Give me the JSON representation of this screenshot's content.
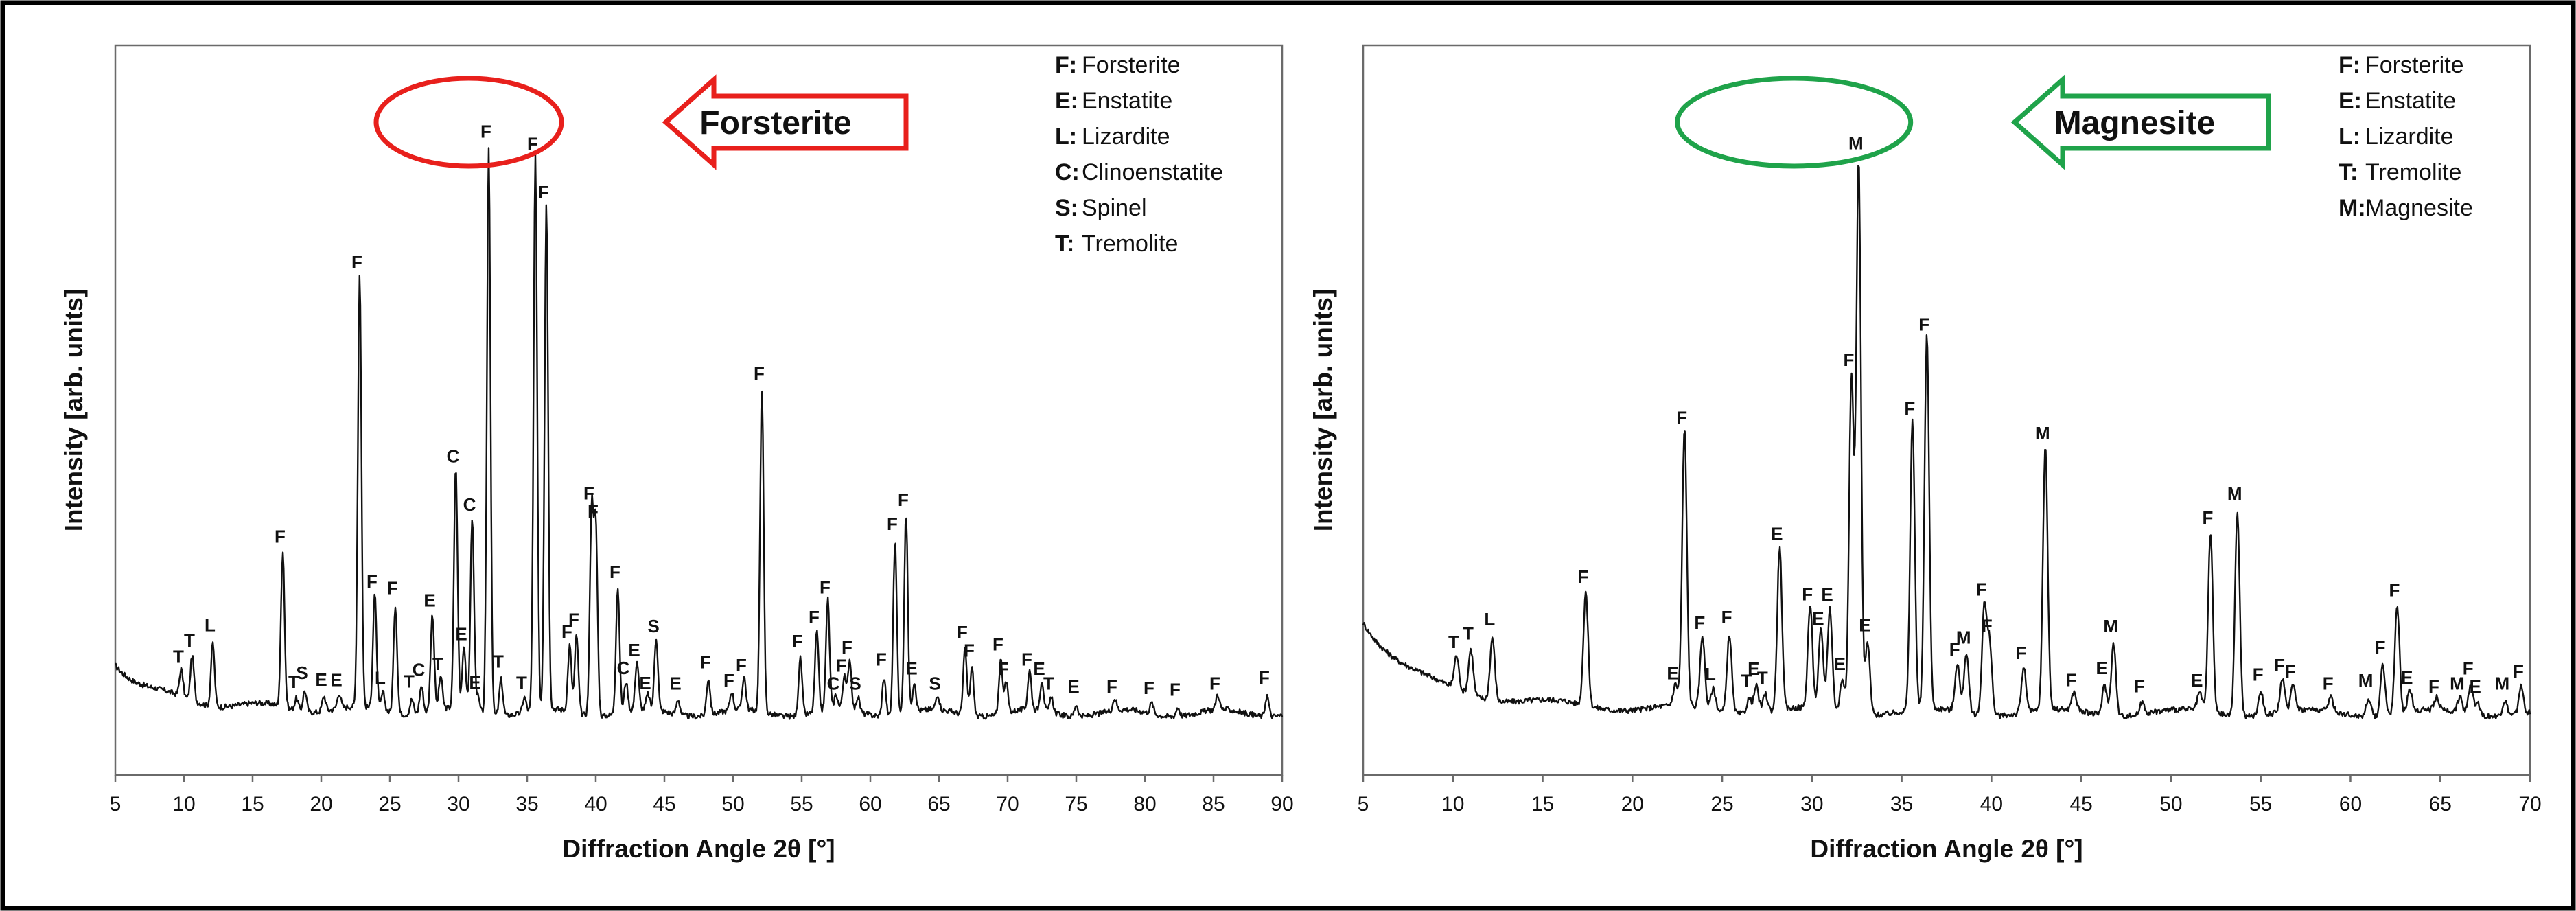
{
  "chart_data": [
    {
      "type": "line",
      "ylabel": "Intensity [arb. units]",
      "xlabel": "Diffraction Angle 2θ [°]",
      "xlim": [
        5,
        90
      ],
      "x_ticks": [
        5,
        10,
        15,
        20,
        25,
        30,
        35,
        40,
        45,
        50,
        55,
        60,
        65,
        70,
        75,
        80,
        85,
        90
      ],
      "ylim": [
        0,
        100
      ],
      "background": {
        "start": 11,
        "decay": 2.2,
        "base": 3.0
      },
      "peaks": [
        {
          "x": 9.8,
          "y": 4.5,
          "label": "T",
          "wide": false
        },
        {
          "x": 10.6,
          "y": 7.5,
          "label": "T",
          "wide": false
        },
        {
          "x": 12.1,
          "y": 10.5,
          "label": "L",
          "wide": false
        },
        {
          "x": 17.2,
          "y": 26,
          "label": "F",
          "wide": false
        },
        {
          "x": 18.2,
          "y": 2,
          "label": "T",
          "wide": false
        },
        {
          "x": 18.8,
          "y": 3.5,
          "label": "S",
          "wide": false
        },
        {
          "x": 20.2,
          "y": 2.5,
          "label": "E",
          "wide": false
        },
        {
          "x": 21.3,
          "y": 2.5,
          "label": "E",
          "wide": false
        },
        {
          "x": 22.8,
          "y": 72,
          "label": "F",
          "wide": false
        },
        {
          "x": 23.9,
          "y": 19,
          "label": "F",
          "wide": false
        },
        {
          "x": 24.5,
          "y": 3,
          "label": "L",
          "wide": false
        },
        {
          "x": 25.4,
          "y": 18,
          "label": "F",
          "wide": false
        },
        {
          "x": 26.6,
          "y": 2.5,
          "label": "T",
          "wide": false
        },
        {
          "x": 27.3,
          "y": 4.5,
          "label": "C",
          "wide": false
        },
        {
          "x": 28.1,
          "y": 16,
          "label": "E",
          "wide": false
        },
        {
          "x": 28.7,
          "y": 5.5,
          "label": "T",
          "wide": false
        },
        {
          "x": 29.8,
          "y": 40,
          "label": "C",
          "wide": false
        },
        {
          "x": 30.4,
          "y": 10.5,
          "label": "E",
          "wide": false
        },
        {
          "x": 31.0,
          "y": 32,
          "label": "C",
          "wide": false
        },
        {
          "x": 31.4,
          "y": 2.5,
          "label": "E",
          "wide": false
        },
        {
          "x": 32.2,
          "y": 94,
          "label": "F",
          "wide": false
        },
        {
          "x": 33.1,
          "y": 6,
          "label": "T",
          "wide": false
        },
        {
          "x": 34.8,
          "y": 2.5,
          "label": "T",
          "wide": false
        },
        {
          "x": 35.6,
          "y": 92,
          "label": "F",
          "wide": false
        },
        {
          "x": 36.4,
          "y": 84,
          "label": "F",
          "wide": false
        },
        {
          "x": 38.1,
          "y": 11,
          "label": "F",
          "wide": false
        },
        {
          "x": 38.6,
          "y": 13,
          "label": "F",
          "wide": false
        },
        {
          "x": 39.7,
          "y": 34,
          "label": "F",
          "wide": false
        },
        {
          "x": 40.0,
          "y": 31,
          "label": "F",
          "wide": false
        },
        {
          "x": 41.6,
          "y": 21,
          "label": "F",
          "wide": false
        },
        {
          "x": 42.2,
          "y": 5,
          "label": "C",
          "wide": false
        },
        {
          "x": 43.0,
          "y": 8,
          "label": "E",
          "wide": false
        },
        {
          "x": 43.8,
          "y": 2.5,
          "label": "E",
          "wide": false
        },
        {
          "x": 44.4,
          "y": 12,
          "label": "S",
          "wide": false
        },
        {
          "x": 46.0,
          "y": 2.5,
          "label": "E",
          "wide": false
        },
        {
          "x": 48.2,
          "y": 6,
          "label": "F",
          "wide": false
        },
        {
          "x": 49.9,
          "y": 3,
          "label": "F",
          "wide": false
        },
        {
          "x": 50.8,
          "y": 5.5,
          "label": "F",
          "wide": false
        },
        {
          "x": 52.1,
          "y": 54,
          "label": "F",
          "wide": false
        },
        {
          "x": 54.9,
          "y": 9.5,
          "label": "F",
          "wide": false
        },
        {
          "x": 56.1,
          "y": 13.5,
          "label": "F",
          "wide": false
        },
        {
          "x": 56.9,
          "y": 18.5,
          "label": "F",
          "wide": false
        },
        {
          "x": 57.5,
          "y": 2.5,
          "label": "C",
          "wide": false
        },
        {
          "x": 58.1,
          "y": 5.5,
          "label": "F",
          "wide": false
        },
        {
          "x": 58.5,
          "y": 8.5,
          "label": "F",
          "wide": false
        },
        {
          "x": 59.1,
          "y": 2.5,
          "label": "S",
          "wide": false
        },
        {
          "x": 61.0,
          "y": 6.5,
          "label": "F",
          "wide": false
        },
        {
          "x": 61.8,
          "y": 29,
          "label": "F",
          "wide": false
        },
        {
          "x": 62.6,
          "y": 33,
          "label": "F",
          "wide": false
        },
        {
          "x": 63.2,
          "y": 5,
          "label": "E",
          "wide": false
        },
        {
          "x": 64.9,
          "y": 2.5,
          "label": "S",
          "wide": false
        },
        {
          "x": 66.9,
          "y": 11,
          "label": "F",
          "wide": false
        },
        {
          "x": 67.4,
          "y": 8,
          "label": "F",
          "wide": false
        },
        {
          "x": 69.5,
          "y": 9,
          "label": "F",
          "wide": false
        },
        {
          "x": 69.9,
          "y": 5,
          "label": "F",
          "wide": false
        },
        {
          "x": 71.6,
          "y": 6.5,
          "label": "F",
          "wide": false
        },
        {
          "x": 72.5,
          "y": 5,
          "label": "E",
          "wide": false
        },
        {
          "x": 73.2,
          "y": 2.5,
          "label": "T",
          "wide": false
        },
        {
          "x": 75.0,
          "y": 2,
          "label": "E",
          "wide": false
        },
        {
          "x": 77.8,
          "y": 2,
          "label": "F",
          "wide": false
        },
        {
          "x": 80.5,
          "y": 1.8,
          "label": "F",
          "wide": false
        },
        {
          "x": 82.4,
          "y": 1.5,
          "label": "F",
          "wide": false
        },
        {
          "x": 85.3,
          "y": 2.5,
          "label": "F",
          "wide": false
        },
        {
          "x": 88.9,
          "y": 3.5,
          "label": "F",
          "wide": false
        }
      ],
      "legend": [
        {
          "key": "F",
          "name": "Forsterite"
        },
        {
          "key": "E",
          "name": "Enstatite"
        },
        {
          "key": "L",
          "name": "Lizardite"
        },
        {
          "key": "C",
          "name": "Clinoenstatite"
        },
        {
          "key": "S",
          "name": "Spinel"
        },
        {
          "key": "T",
          "name": "Tremolite"
        }
      ],
      "callout": {
        "text": "Forsterite",
        "color": "#e8201c",
        "ellipse_x": [
          24,
          37.5
        ],
        "ellipse_y": [
          84,
          100
        ]
      }
    },
    {
      "type": "line",
      "ylabel": "Intensity [arb. units]",
      "xlabel": "Diffraction Angle 2θ [°]",
      "xlim": [
        5,
        70
      ],
      "x_ticks": [
        5,
        10,
        15,
        20,
        25,
        30,
        35,
        40,
        45,
        50,
        55,
        60,
        65,
        70
      ],
      "ylim": [
        0,
        100
      ],
      "background": {
        "start": 23,
        "decay": 2.6,
        "base": 4.0
      },
      "peaks": [
        {
          "x": 10.2,
          "y": 5.5,
          "label": "T",
          "wide": false
        },
        {
          "x": 11.0,
          "y": 7.5,
          "label": "T",
          "wide": false
        },
        {
          "x": 12.2,
          "y": 10.5,
          "label": "L",
          "wide": false
        },
        {
          "x": 17.4,
          "y": 19,
          "label": "F",
          "wide": false
        },
        {
          "x": 22.4,
          "y": 3.5,
          "label": "E",
          "wide": false
        },
        {
          "x": 22.9,
          "y": 46,
          "label": "F",
          "wide": false
        },
        {
          "x": 23.9,
          "y": 12,
          "label": "F",
          "wide": false
        },
        {
          "x": 24.5,
          "y": 3.5,
          "label": "L",
          "wide": false
        },
        {
          "x": 25.4,
          "y": 13,
          "label": "F",
          "wide": false
        },
        {
          "x": 26.5,
          "y": 2.5,
          "label": "T",
          "wide": false
        },
        {
          "x": 26.9,
          "y": 4.5,
          "label": "E",
          "wide": false
        },
        {
          "x": 27.4,
          "y": 3,
          "label": "T",
          "wide": false
        },
        {
          "x": 28.2,
          "y": 27,
          "label": "E",
          "wide": false
        },
        {
          "x": 29.9,
          "y": 17,
          "label": "F",
          "wide": false
        },
        {
          "x": 30.5,
          "y": 13,
          "label": "E",
          "wide": false
        },
        {
          "x": 31.0,
          "y": 17,
          "label": "E",
          "wide": false
        },
        {
          "x": 31.7,
          "y": 5.5,
          "label": "E",
          "wide": false
        },
        {
          "x": 32.2,
          "y": 56,
          "label": "F",
          "wide": false
        },
        {
          "x": 32.6,
          "y": 92,
          "label": "M",
          "wide": false
        },
        {
          "x": 33.1,
          "y": 12,
          "label": "E",
          "wide": false
        },
        {
          "x": 35.6,
          "y": 48,
          "label": "F",
          "wide": false
        },
        {
          "x": 36.4,
          "y": 62,
          "label": "F",
          "wide": false
        },
        {
          "x": 38.1,
          "y": 8,
          "label": "F",
          "wide": false
        },
        {
          "x": 38.6,
          "y": 10,
          "label": "M",
          "wide": false
        },
        {
          "x": 39.6,
          "y": 18,
          "label": "F",
          "wide": false
        },
        {
          "x": 39.9,
          "y": 12,
          "label": "F",
          "wide": false
        },
        {
          "x": 41.8,
          "y": 7.5,
          "label": "F",
          "wide": false
        },
        {
          "x": 43.0,
          "y": 44,
          "label": "M",
          "wide": false
        },
        {
          "x": 44.6,
          "y": 3,
          "label": "F",
          "wide": false
        },
        {
          "x": 46.3,
          "y": 5,
          "label": "E",
          "wide": false
        },
        {
          "x": 46.8,
          "y": 12,
          "label": "M",
          "wide": false
        },
        {
          "x": 48.4,
          "y": 2,
          "label": "F",
          "wide": false
        },
        {
          "x": 51.6,
          "y": 3,
          "label": "E",
          "wide": false
        },
        {
          "x": 52.2,
          "y": 30,
          "label": "F",
          "wide": false
        },
        {
          "x": 53.7,
          "y": 34,
          "label": "M",
          "wide": false
        },
        {
          "x": 55.0,
          "y": 4,
          "label": "F",
          "wide": false
        },
        {
          "x": 56.2,
          "y": 5.5,
          "label": "F",
          "wide": false
        },
        {
          "x": 56.8,
          "y": 4.5,
          "label": "F",
          "wide": false
        },
        {
          "x": 58.9,
          "y": 2.5,
          "label": "F",
          "wide": false
        },
        {
          "x": 61.0,
          "y": 3,
          "label": "M",
          "wide": false
        },
        {
          "x": 61.8,
          "y": 8.5,
          "label": "F",
          "wide": false
        },
        {
          "x": 62.6,
          "y": 18,
          "label": "F",
          "wide": false
        },
        {
          "x": 63.3,
          "y": 3.5,
          "label": "E",
          "wide": false
        },
        {
          "x": 64.8,
          "y": 2,
          "label": "F",
          "wide": false
        },
        {
          "x": 66.1,
          "y": 2.5,
          "label": "M",
          "wide": false
        },
        {
          "x": 66.7,
          "y": 5,
          "label": "F",
          "wide": false
        },
        {
          "x": 67.1,
          "y": 2,
          "label": "E",
          "wide": false
        },
        {
          "x": 68.6,
          "y": 2.5,
          "label": "M",
          "wide": false
        },
        {
          "x": 69.5,
          "y": 4.5,
          "label": "F",
          "wide": false
        }
      ],
      "legend": [
        {
          "key": "F",
          "name": "Forsterite"
        },
        {
          "key": "E",
          "name": "Enstatite"
        },
        {
          "key": "L",
          "name": "Lizardite"
        },
        {
          "key": "T",
          "name": "Tremolite"
        },
        {
          "key": "M",
          "name": "Magnesite"
        }
      ],
      "callout": {
        "text": "Magnesite",
        "color": "#1fa34a",
        "ellipse_x": [
          22.5,
          35.5
        ],
        "ellipse_y": [
          84,
          100
        ]
      }
    }
  ]
}
